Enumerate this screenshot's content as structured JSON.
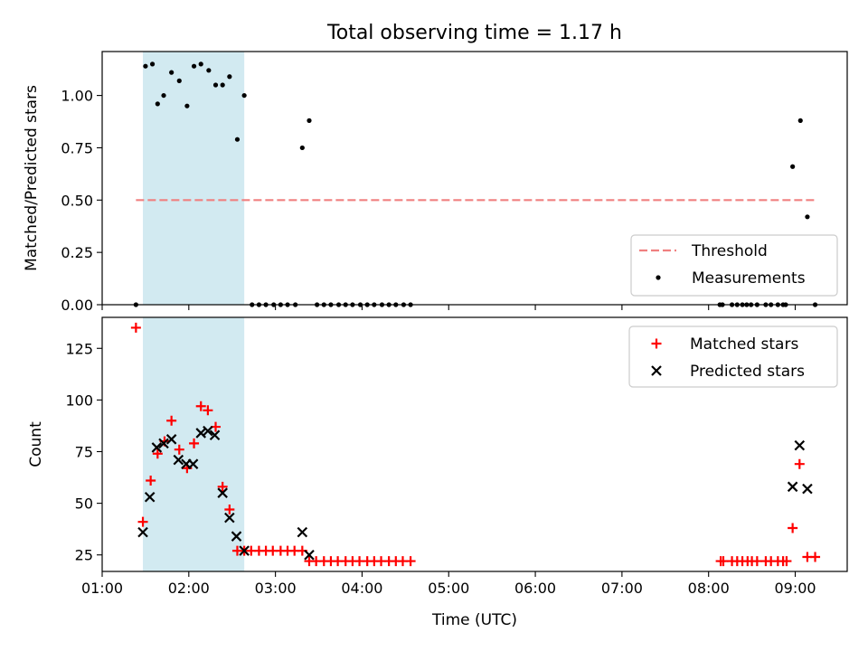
{
  "figure": {
    "title": "Total observing time = 1.17 h",
    "xlabel": "Time (UTC)"
  },
  "colors": {
    "shade": "#add8e6",
    "threshold": "#f08080",
    "measurement": "#000000",
    "matched": "#ff0000",
    "predicted": "#000000"
  },
  "chart_data": [
    {
      "type": "scatter",
      "title": "Total observing time = 1.17 h",
      "xlabel": "",
      "ylabel": "Matched/Predicted stars",
      "xlim": [
        1.0,
        9.6
      ],
      "ylim": [
        0.0,
        1.21
      ],
      "x_ticks": [
        {
          "v": 1,
          "label": "01:00"
        },
        {
          "v": 2,
          "label": "02:00"
        },
        {
          "v": 3,
          "label": "03:00"
        },
        {
          "v": 4,
          "label": "04:00"
        },
        {
          "v": 5,
          "label": "05:00"
        },
        {
          "v": 6,
          "label": "06:00"
        },
        {
          "v": 7,
          "label": "07:00"
        },
        {
          "v": 8,
          "label": "08:00"
        },
        {
          "v": 9,
          "label": "09:00"
        }
      ],
      "y_ticks": [
        {
          "v": 0.0,
          "label": "0.00"
        },
        {
          "v": 0.25,
          "label": "0.25"
        },
        {
          "v": 0.5,
          "label": "0.50"
        },
        {
          "v": 0.75,
          "label": "0.75"
        },
        {
          "v": 1.0,
          "label": "1.00"
        }
      ],
      "shaded_region": [
        1.47,
        2.64
      ],
      "threshold": {
        "name": "Threshold",
        "y": 0.5,
        "x": [
          1.39,
          9.23
        ]
      },
      "series": [
        {
          "name": "Measurements",
          "x": [
            1.39,
            1.5,
            1.58,
            1.64,
            1.71,
            1.8,
            1.89,
            1.98,
            2.06,
            2.14,
            2.23,
            2.31,
            2.39,
            2.47,
            2.56,
            2.64,
            2.73,
            2.81,
            2.89,
            2.98,
            3.06,
            3.14,
            3.23,
            3.31,
            3.39,
            3.48,
            3.56,
            3.64,
            3.73,
            3.81,
            3.89,
            3.98,
            4.06,
            4.14,
            4.23,
            4.31,
            4.39,
            4.48,
            4.56,
            8.13,
            8.16,
            8.27,
            8.33,
            8.39,
            8.44,
            8.49,
            8.56,
            8.66,
            8.72,
            8.8,
            8.86,
            8.89,
            8.97,
            9.06,
            9.14,
            9.23
          ],
          "y": [
            0,
            1.14,
            1.15,
            0.96,
            1.0,
            1.11,
            1.07,
            0.95,
            1.14,
            1.15,
            1.12,
            1.05,
            1.05,
            1.09,
            0.79,
            1.0,
            0,
            0,
            0,
            0,
            0,
            0,
            0,
            0.75,
            0.88,
            0,
            0,
            0,
            0,
            0,
            0,
            0,
            0,
            0,
            0,
            0,
            0,
            0,
            0,
            0,
            0,
            0,
            0,
            0,
            0,
            0,
            0,
            0,
            0,
            0,
            0,
            0,
            0.66,
            0.88,
            0.42,
            0
          ]
        }
      ],
      "legend": {
        "position": "lower-right",
        "entries": [
          "Threshold",
          "Measurements"
        ]
      }
    },
    {
      "type": "scatter",
      "xlabel": "Time (UTC)",
      "ylabel": "Count",
      "xlim": [
        1.0,
        9.6
      ],
      "ylim": [
        17,
        140
      ],
      "x_ticks": [
        {
          "v": 1,
          "label": "01:00"
        },
        {
          "v": 2,
          "label": "02:00"
        },
        {
          "v": 3,
          "label": "03:00"
        },
        {
          "v": 4,
          "label": "04:00"
        },
        {
          "v": 5,
          "label": "05:00"
        },
        {
          "v": 6,
          "label": "06:00"
        },
        {
          "v": 7,
          "label": "07:00"
        },
        {
          "v": 8,
          "label": "08:00"
        },
        {
          "v": 9,
          "label": "09:00"
        }
      ],
      "y_ticks": [
        {
          "v": 25,
          "label": "25"
        },
        {
          "v": 50,
          "label": "50"
        },
        {
          "v": 75,
          "label": "75"
        },
        {
          "v": 100,
          "label": "100"
        },
        {
          "v": 125,
          "label": "125"
        }
      ],
      "shaded_region": [
        1.47,
        2.64
      ],
      "series": [
        {
          "name": "Matched stars",
          "marker": "+",
          "x": [
            1.39,
            1.47,
            1.56,
            1.64,
            1.72,
            1.8,
            1.89,
            1.98,
            2.06,
            2.14,
            2.22,
            2.31,
            2.39,
            2.47,
            2.56,
            2.64,
            2.72,
            2.81,
            2.89,
            2.97,
            3.06,
            3.14,
            3.22,
            3.31,
            3.39,
            3.47,
            3.56,
            3.64,
            3.72,
            3.81,
            3.89,
            3.97,
            4.06,
            4.14,
            4.22,
            4.31,
            4.39,
            4.47,
            4.56,
            8.14,
            8.17,
            8.27,
            8.33,
            8.39,
            8.45,
            8.5,
            8.56,
            8.66,
            8.72,
            8.8,
            8.86,
            8.9,
            8.97,
            9.05,
            9.14,
            9.23
          ],
          "y": [
            135,
            41,
            61,
            74,
            80,
            90,
            76,
            67,
            79,
            97,
            95,
            87,
            58,
            47,
            27,
            27,
            27,
            27,
            27,
            27,
            27,
            27,
            27,
            27,
            22,
            22,
            22,
            22,
            22,
            22,
            22,
            22,
            22,
            22,
            22,
            22,
            22,
            22,
            22,
            22,
            22,
            22,
            22,
            22,
            22,
            22,
            22,
            22,
            22,
            22,
            22,
            22,
            38,
            69,
            24,
            24
          ]
        },
        {
          "name": "Predicted stars",
          "marker": "x",
          "x": [
            1.47,
            1.55,
            1.63,
            1.71,
            1.8,
            1.88,
            1.97,
            2.05,
            2.14,
            2.22,
            2.3,
            2.39,
            2.47,
            2.55,
            2.64,
            3.31,
            3.39,
            8.97,
            9.05,
            9.14
          ],
          "y": [
            36,
            53,
            77,
            79,
            81,
            71,
            69,
            69,
            84,
            85,
            83,
            55,
            43,
            34,
            27,
            36,
            25,
            58,
            78,
            57
          ]
        }
      ],
      "legend": {
        "position": "upper-right",
        "entries": [
          "Matched stars",
          "Predicted stars"
        ]
      }
    }
  ]
}
